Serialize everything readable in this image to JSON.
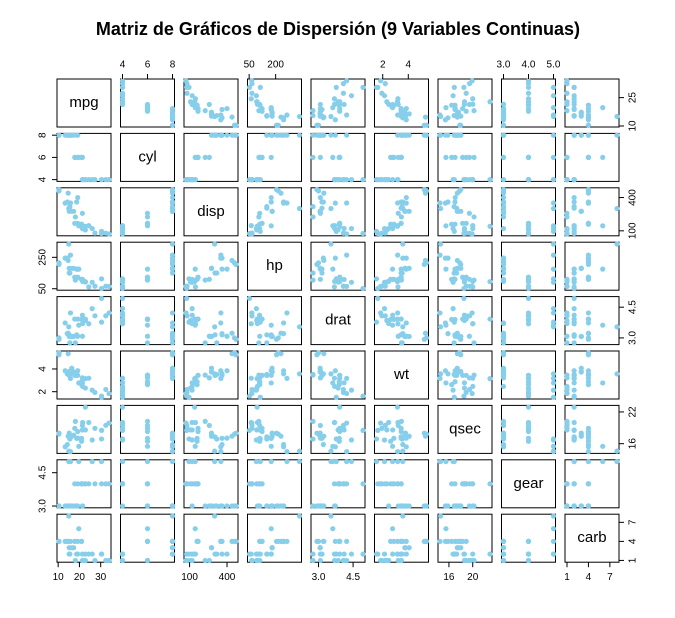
{
  "chart_data": {
    "type": "scatter-matrix",
    "title": "Matriz de Gráficos de Dispersión (9 Variables Continuas)",
    "color": "#87CEEB",
    "variables": [
      {
        "name": "mpg",
        "values": [
          21,
          21,
          22.8,
          21.4,
          18.7,
          18.1,
          14.3,
          24.4,
          22.8,
          19.2,
          17.8,
          16.4,
          17.3,
          15.2,
          10.4,
          10.4,
          14.7,
          32.4,
          30.4,
          33.9,
          21.5,
          15.5,
          15.2,
          13.3,
          19.2,
          27.3,
          26,
          30.4,
          15.8,
          19.7,
          15,
          21.4
        ],
        "lim": [
          9.46,
          34.84
        ],
        "x_ticks": [
          10,
          20,
          30
        ],
        "y_ticks": [
          10,
          25
        ]
      },
      {
        "name": "cyl",
        "values": [
          6,
          6,
          4,
          6,
          8,
          6,
          8,
          4,
          4,
          6,
          6,
          8,
          8,
          8,
          8,
          8,
          8,
          4,
          4,
          4,
          4,
          8,
          8,
          8,
          8,
          4,
          4,
          4,
          8,
          6,
          8,
          4
        ],
        "lim": [
          3.84,
          8.16
        ],
        "x_ticks": [
          4,
          6,
          8
        ],
        "y_ticks": [
          4,
          6,
          8
        ]
      },
      {
        "name": "disp",
        "values": [
          160,
          160,
          108,
          258,
          360,
          225,
          360,
          146.7,
          140.8,
          167.6,
          167.6,
          275.8,
          275.8,
          275.8,
          472,
          460,
          440,
          78.7,
          75.7,
          71.1,
          120.1,
          318,
          304,
          350,
          400,
          79,
          120.3,
          95.1,
          351,
          145,
          301,
          121
        ],
        "lim": [
          55.06,
          488.04
        ],
        "x_ticks": [
          100,
          400
        ],
        "y_ticks": [
          100,
          400
        ]
      },
      {
        "name": "hp",
        "values": [
          110,
          110,
          93,
          110,
          175,
          105,
          245,
          62,
          95,
          123,
          123,
          180,
          180,
          180,
          205,
          215,
          230,
          66,
          52,
          65,
          97,
          150,
          150,
          245,
          175,
          66,
          91,
          113,
          264,
          175,
          335,
          109
        ],
        "lim": [
          40.68,
          346.32
        ],
        "x_ticks": [
          50,
          200
        ],
        "y_ticks": [
          50,
          250
        ]
      },
      {
        "name": "drat",
        "values": [
          3.9,
          3.9,
          3.85,
          3.08,
          3.15,
          2.76,
          3.21,
          3.69,
          3.92,
          3.92,
          3.92,
          3.07,
          3.07,
          3.07,
          2.93,
          3,
          3.23,
          4.08,
          4.93,
          4.22,
          3.7,
          2.76,
          3.15,
          3.73,
          3.08,
          4.08,
          4.43,
          3.77,
          4.22,
          3.62,
          3.54,
          4.11
        ],
        "lim": [
          2.673,
          5.017
        ],
        "x_ticks": [
          {
            "value": 3,
            "label": "3.0"
          },
          4.5
        ],
        "y_ticks": [
          {
            "value": 3,
            "label": "3.0"
          },
          4.5
        ]
      },
      {
        "name": "wt",
        "values": [
          2.62,
          2.875,
          2.32,
          3.215,
          3.44,
          3.46,
          3.57,
          3.19,
          3.15,
          3.44,
          3.44,
          4.07,
          3.73,
          3.78,
          5.25,
          5.424,
          5.345,
          2.2,
          1.615,
          1.835,
          2.465,
          3.52,
          3.435,
          3.84,
          3.845,
          1.935,
          2.14,
          1.513,
          3.17,
          2.77,
          3.57,
          2.78
        ],
        "lim": [
          1.357,
          5.58
        ],
        "x_ticks": [
          2,
          4
        ],
        "y_ticks": [
          2,
          4
        ]
      },
      {
        "name": "qsec",
        "values": [
          16.46,
          17.02,
          18.61,
          19.44,
          17.02,
          20.22,
          15.84,
          20,
          22.9,
          18.3,
          18.9,
          17.4,
          17.6,
          18,
          17.98,
          17.82,
          17.42,
          19.47,
          18.52,
          19.9,
          20.01,
          16.87,
          17.3,
          15.41,
          17.05,
          18.9,
          16.7,
          16.9,
          14.5,
          15.5,
          14.6,
          18.6
        ],
        "lim": [
          14.164,
          23.236
        ],
        "x_ticks": [
          16,
          20
        ],
        "y_ticks": [
          16,
          22
        ]
      },
      {
        "name": "gear",
        "values": [
          4,
          4,
          4,
          3,
          3,
          3,
          3,
          4,
          4,
          4,
          4,
          3,
          3,
          3,
          3,
          3,
          3,
          4,
          4,
          4,
          3,
          3,
          3,
          3,
          3,
          4,
          5,
          5,
          5,
          5,
          5,
          4
        ],
        "lim": [
          2.92,
          5.08
        ],
        "x_ticks": [
          {
            "value": 3,
            "label": "3.0"
          },
          {
            "value": 4,
            "label": "4.0"
          },
          {
            "value": 5,
            "label": "5.0"
          }
        ],
        "y_ticks": [
          {
            "value": 3,
            "label": "3.0"
          },
          4.5
        ]
      },
      {
        "name": "carb",
        "values": [
          4,
          4,
          1,
          1,
          2,
          1,
          4,
          2,
          2,
          4,
          4,
          3,
          3,
          3,
          4,
          4,
          4,
          1,
          2,
          1,
          1,
          2,
          2,
          4,
          2,
          1,
          2,
          2,
          4,
          6,
          8,
          2
        ],
        "lim": [
          0.72,
          8.28
        ],
        "x_ticks": [
          1,
          4,
          7
        ],
        "y_ticks": [
          1,
          4,
          7
        ]
      }
    ]
  }
}
